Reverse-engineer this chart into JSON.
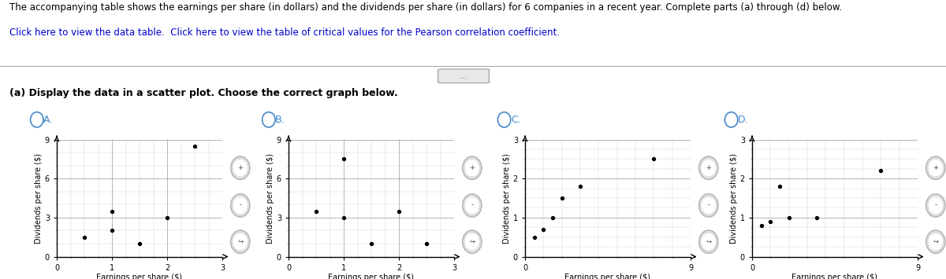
{
  "title_text": "The accompanying table shows the earnings per share (in dollars) and the dividends per share (in dollars) for 6 companies in a recent year. Complete parts (a) through (d) below.",
  "link_text": "Click here to view the data table.  Click here to view the table of critical values for the Pearson correlation coefficient.",
  "part_text": "(a) Display the data in a scatter plot. Choose the correct graph below.",
  "panels": [
    "A.",
    "B.",
    "C.",
    "D."
  ],
  "scatter_A": {
    "x": [
      0.5,
      1.0,
      1.0,
      1.5,
      2.0,
      2.5
    ],
    "y": [
      1.5,
      2.0,
      3.5,
      1.0,
      3.0,
      8.5
    ],
    "xlim": [
      0,
      3
    ],
    "ylim": [
      0,
      9
    ],
    "xticks": [
      0,
      1,
      2,
      3
    ],
    "yticks": [
      0,
      3,
      6,
      9
    ],
    "xlabel": "Earnings per share ($)",
    "ylabel": "Dividends per share ($)"
  },
  "scatter_B": {
    "x": [
      0.5,
      1.0,
      1.0,
      1.5,
      2.0,
      2.5
    ],
    "y": [
      3.5,
      3.0,
      7.5,
      1.0,
      3.5,
      1.0
    ],
    "xlim": [
      0,
      3
    ],
    "ylim": [
      0,
      9
    ],
    "xticks": [
      0,
      1,
      2,
      3
    ],
    "yticks": [
      0,
      3,
      6,
      9
    ],
    "xlabel": "Earnings per share ($)",
    "ylabel": "Dividends per share ($)"
  },
  "scatter_C": {
    "x": [
      0.5,
      1.0,
      1.5,
      2.0,
      3.0,
      7.0
    ],
    "y": [
      0.5,
      0.7,
      1.0,
      1.5,
      1.8,
      2.5
    ],
    "xlim": [
      0,
      9
    ],
    "ylim": [
      0,
      3
    ],
    "xticks": [
      0,
      9
    ],
    "yticks": [
      0,
      1,
      2,
      3
    ],
    "xlabel": "Earnings per share ($)",
    "ylabel": "Dividends per share ($)"
  },
  "scatter_D": {
    "x": [
      0.5,
      1.0,
      1.5,
      2.0,
      3.5,
      7.0
    ],
    "y": [
      0.8,
      0.9,
      1.8,
      1.0,
      1.0,
      2.2
    ],
    "xlim": [
      0,
      9
    ],
    "ylim": [
      0,
      3
    ],
    "xticks": [
      0,
      9
    ],
    "yticks": [
      0,
      1,
      2,
      3
    ],
    "xlabel": "Earnings per share ($)",
    "ylabel": "Dividends per share ($)"
  },
  "bg_color": "#ffffff",
  "text_color": "#000000",
  "link_color": "#0000cc",
  "panel_label_color": "#4488cc",
  "dot_color": "#000000",
  "dot_size": 8,
  "grid_color": "#aaaaaa",
  "axis_color": "#000000",
  "font_size_title": 8.5,
  "font_size_label": 7.0,
  "font_size_tick": 7,
  "font_size_panel": 9
}
